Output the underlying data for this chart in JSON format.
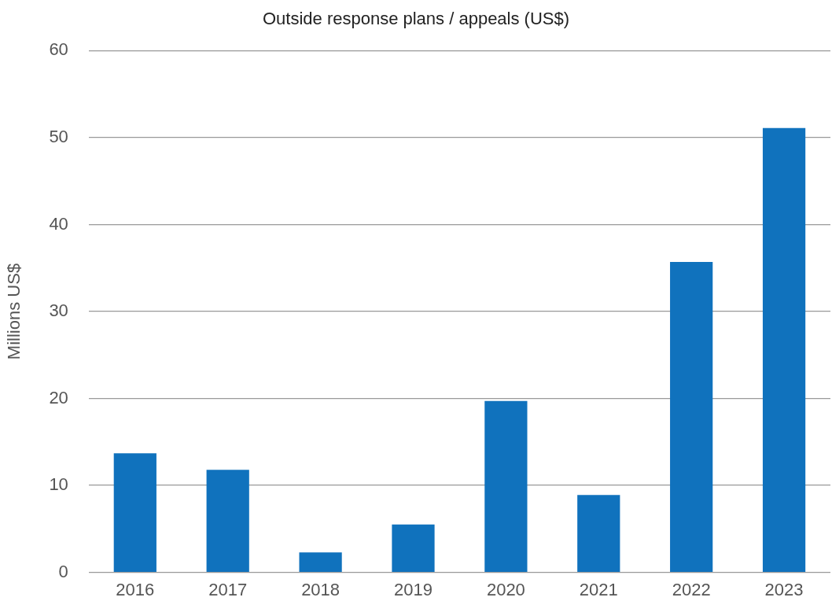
{
  "chart_data": {
    "type": "bar",
    "title": "Outside response plans / appeals (US$)",
    "ylabel": "Millions US$",
    "categories": [
      "2016",
      "2017",
      "2018",
      "2019",
      "2020",
      "2021",
      "2022",
      "2023"
    ],
    "values": [
      13.7,
      11.8,
      2.3,
      5.5,
      19.7,
      8.9,
      35.7,
      51.1
    ],
    "color": "#1072bd",
    "ylim": [
      0,
      60
    ],
    "yticks": [
      0,
      10,
      20,
      30,
      40,
      50,
      60
    ],
    "grid": "y",
    "legend": false
  }
}
